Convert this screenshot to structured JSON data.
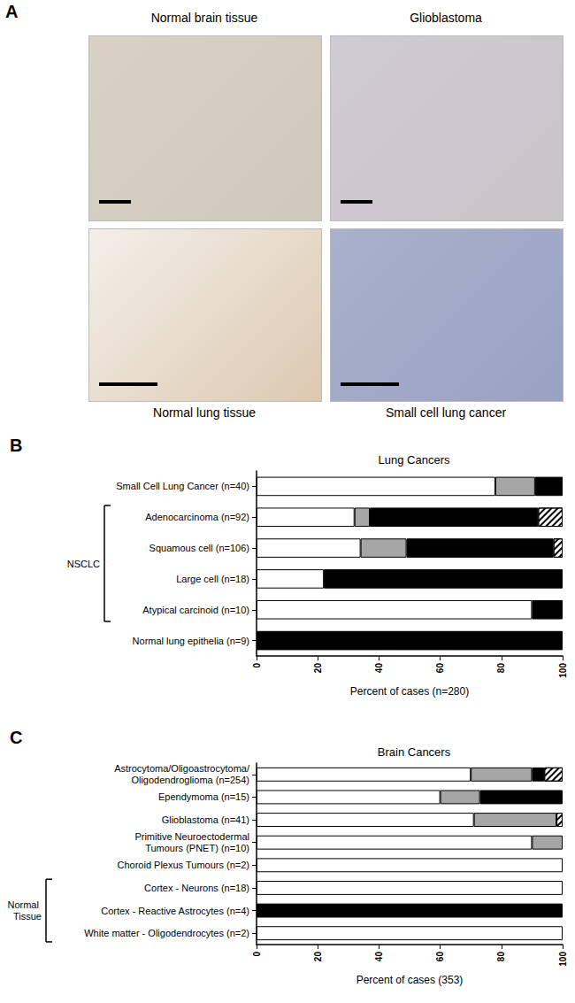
{
  "panel_a": {
    "panel": "A",
    "images": [
      "Normal brain tissue",
      "Glioblastoma",
      "Normal lung tissue",
      "Small cell lung cancer"
    ]
  },
  "chart_data": [
    {
      "type": "bar",
      "panel": "B",
      "title": "Lung Cancers",
      "orientation": "horizontal",
      "stacked": true,
      "x_label": "Percent of cases (n=280)",
      "categories": [
        "Small Cell Lung Cancer (n=40)",
        "Adenocarcinoma (n=92)",
        "Squamous cell (n=106)",
        "Large cell (n=18)",
        "Atypical carcinoid (n=10)",
        "Normal lung epithelia (n=9)"
      ],
      "series": [
        {
          "color": "#ffffff",
          "values": [
            78,
            32,
            34,
            22,
            90,
            0
          ]
        },
        {
          "color": "#a6a6a6",
          "values": [
            13,
            5,
            15,
            0,
            0,
            0
          ]
        },
        {
          "color": "#000000",
          "values": [
            9,
            55,
            48,
            78,
            10,
            100
          ]
        },
        {
          "color": "#ffffff",
          "marker": "hatch",
          "values": [
            0,
            8,
            3,
            0,
            0,
            0
          ]
        }
      ],
      "annotations": [
        {
          "text": "NSCLC",
          "first": "Adenocarcinoma (n=92)",
          "last": "Atypical carcinoid (n=10)"
        }
      ],
      "xlim": [
        0,
        100
      ],
      "xticks": [
        0,
        20,
        40,
        60,
        80,
        100
      ],
      "grid": false
    },
    {
      "type": "bar",
      "panel": "C",
      "title": "Brain Cancers",
      "orientation": "horizontal",
      "stacked": true,
      "x_label": "Percent of cases (353)",
      "categories": [
        "Astrocytoma/Oligoastrocytoma/\nOligodendroglioma (n=254)",
        "Ependymoma (n=15)",
        "Glioblastoma (n=41)",
        "Primitive Neuroectodermal\nTumours (PNET) (n=10)",
        "Choroid Plexus Tumours (n=2)",
        "Cortex - Neurons (n=18)",
        "Cortex - Reactive Astrocytes (n=4)",
        "White matter - Oligodendrocytes (n=2)"
      ],
      "series": [
        {
          "color": "#ffffff",
          "values": [
            70,
            60,
            71,
            90,
            100,
            100,
            0,
            100
          ]
        },
        {
          "color": "#a6a6a6",
          "values": [
            20,
            13,
            27,
            10,
            0,
            0,
            0,
            0
          ]
        },
        {
          "color": "#000000",
          "values": [
            4,
            27,
            0,
            0,
            0,
            0,
            100,
            0
          ]
        },
        {
          "color": "#ffffff",
          "marker": "hatch",
          "values": [
            6,
            0,
            2,
            0,
            0,
            0,
            0,
            0
          ]
        }
      ],
      "annotations": [
        {
          "text": "Normal Tissue",
          "first": "Cortex - Neurons (n=18)",
          "last": "White matter - Oligodendrocytes (n=2)"
        }
      ],
      "xlim": [
        0,
        100
      ],
      "xticks": [
        0,
        20,
        40,
        60,
        80,
        100
      ],
      "grid": false
    }
  ]
}
